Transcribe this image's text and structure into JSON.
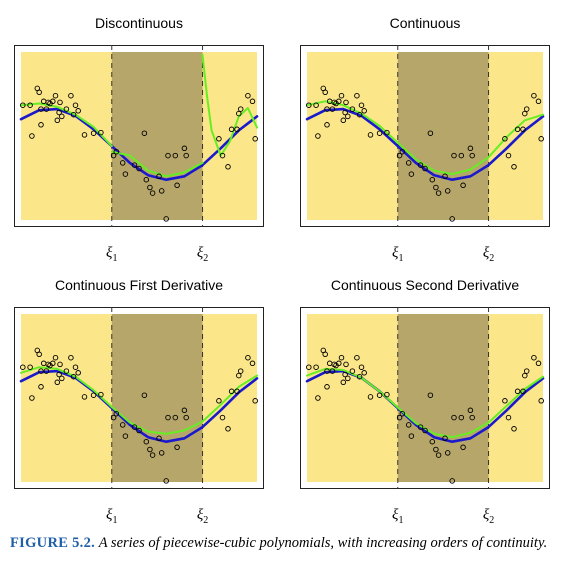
{
  "caption": {
    "label": "FIGURE 5.2.",
    "text": "A series of piecewise-cubic polynomials, with increasing orders of continuity."
  },
  "colors": {
    "outer_region": "#fce68a",
    "middle_region": "#b7a66a",
    "true_function": "#1a1acc",
    "fit": "#66ee22",
    "points": "#000000",
    "knot_lines": "#333333"
  },
  "knot_labels": [
    "ξ1",
    "ξ2"
  ],
  "chart_data": [
    {
      "type": "scatter",
      "title": "Discontinuous",
      "knots": [
        1,
        2
      ],
      "xlim": [
        0,
        2.6
      ],
      "ylim": [
        -1.5,
        1.5
      ],
      "points": [
        [
          0.02,
          0.55
        ],
        [
          0.1,
          0.55
        ],
        [
          0.12,
          0.0
        ],
        [
          0.18,
          0.85
        ],
        [
          0.2,
          0.78
        ],
        [
          0.22,
          0.48
        ],
        [
          0.22,
          0.2
        ],
        [
          0.25,
          0.62
        ],
        [
          0.28,
          0.48
        ],
        [
          0.3,
          0.6
        ],
        [
          0.32,
          0.58
        ],
        [
          0.35,
          0.62
        ],
        [
          0.38,
          0.72
        ],
        [
          0.4,
          0.28
        ],
        [
          0.42,
          0.42
        ],
        [
          0.43,
          0.6
        ],
        [
          0.45,
          0.35
        ],
        [
          0.5,
          0.48
        ],
        [
          0.55,
          0.72
        ],
        [
          0.58,
          0.38
        ],
        [
          0.6,
          0.55
        ],
        [
          0.63,
          0.45
        ],
        [
          0.7,
          0.02
        ],
        [
          0.8,
          0.05
        ],
        [
          0.88,
          0.06
        ],
        [
          1.02,
          -0.35
        ],
        [
          1.05,
          -0.28
        ],
        [
          1.12,
          -0.48
        ],
        [
          1.15,
          -0.68
        ],
        [
          1.25,
          -0.52
        ],
        [
          1.3,
          -0.58
        ],
        [
          1.36,
          0.05
        ],
        [
          1.38,
          -0.78
        ],
        [
          1.42,
          -0.92
        ],
        [
          1.45,
          -1.02
        ],
        [
          1.52,
          -0.72
        ],
        [
          1.55,
          -0.98
        ],
        [
          1.6,
          -1.48
        ],
        [
          1.62,
          -0.35
        ],
        [
          1.7,
          -0.35
        ],
        [
          1.72,
          -0.88
        ],
        [
          1.8,
          -0.22
        ],
        [
          1.82,
          -0.35
        ],
        [
          2.18,
          -0.05
        ],
        [
          2.22,
          -0.35
        ],
        [
          2.28,
          -0.55
        ],
        [
          2.32,
          0.12
        ],
        [
          2.38,
          0.12
        ],
        [
          2.4,
          0.4
        ],
        [
          2.42,
          0.48
        ],
        [
          2.5,
          0.72
        ],
        [
          2.55,
          0.62
        ],
        [
          2.58,
          -0.05
        ]
      ],
      "true_function": {
        "x": [
          0,
          0.2,
          0.4,
          0.6,
          0.8,
          1,
          1.2,
          1.4,
          1.6,
          1.8,
          2,
          2.2,
          2.4,
          2.6
        ],
        "y": [
          0.3,
          0.46,
          0.48,
          0.36,
          0.12,
          -0.18,
          -0.48,
          -0.7,
          -0.78,
          -0.72,
          -0.52,
          -0.22,
          0.1,
          0.35
        ]
      },
      "fit_segments": [
        {
          "x": [
            0,
            0.2,
            0.4,
            0.6,
            0.8,
            1
          ],
          "y": [
            0.55,
            0.58,
            0.52,
            0.38,
            0.16,
            -0.18
          ]
        },
        {
          "x": [
            1,
            1.2,
            1.4,
            1.6,
            1.8,
            2
          ],
          "y": [
            -0.28,
            -0.35,
            -0.62,
            -0.72,
            -0.65,
            -0.48
          ]
        },
        {
          "x": [
            2,
            2.05,
            2.1,
            2.2,
            2.3,
            2.4,
            2.5,
            2.6
          ],
          "y": [
            1.45,
            0.7,
            0.1,
            -0.35,
            -0.1,
            0.35,
            0.5,
            0.15
          ]
        }
      ]
    },
    {
      "type": "scatter",
      "title": "Continuous",
      "knots": [
        1,
        2
      ],
      "xlim": [
        0,
        2.6
      ],
      "ylim": [
        -1.5,
        1.5
      ],
      "points": [
        [
          0.02,
          0.55
        ],
        [
          0.1,
          0.55
        ],
        [
          0.12,
          0.0
        ],
        [
          0.18,
          0.85
        ],
        [
          0.2,
          0.78
        ],
        [
          0.22,
          0.48
        ],
        [
          0.22,
          0.2
        ],
        [
          0.25,
          0.62
        ],
        [
          0.28,
          0.48
        ],
        [
          0.3,
          0.6
        ],
        [
          0.32,
          0.58
        ],
        [
          0.35,
          0.62
        ],
        [
          0.38,
          0.72
        ],
        [
          0.4,
          0.28
        ],
        [
          0.42,
          0.42
        ],
        [
          0.43,
          0.6
        ],
        [
          0.45,
          0.35
        ],
        [
          0.5,
          0.48
        ],
        [
          0.55,
          0.72
        ],
        [
          0.58,
          0.38
        ],
        [
          0.6,
          0.55
        ],
        [
          0.63,
          0.45
        ],
        [
          0.7,
          0.02
        ],
        [
          0.8,
          0.05
        ],
        [
          0.88,
          0.06
        ],
        [
          1.02,
          -0.35
        ],
        [
          1.05,
          -0.28
        ],
        [
          1.12,
          -0.48
        ],
        [
          1.15,
          -0.68
        ],
        [
          1.25,
          -0.52
        ],
        [
          1.3,
          -0.58
        ],
        [
          1.36,
          0.05
        ],
        [
          1.38,
          -0.78
        ],
        [
          1.42,
          -0.92
        ],
        [
          1.45,
          -1.02
        ],
        [
          1.52,
          -0.72
        ],
        [
          1.55,
          -0.98
        ],
        [
          1.6,
          -1.48
        ],
        [
          1.62,
          -0.35
        ],
        [
          1.7,
          -0.35
        ],
        [
          1.72,
          -0.88
        ],
        [
          1.8,
          -0.22
        ],
        [
          1.82,
          -0.35
        ],
        [
          2.18,
          -0.05
        ],
        [
          2.22,
          -0.35
        ],
        [
          2.28,
          -0.55
        ],
        [
          2.32,
          0.12
        ],
        [
          2.38,
          0.12
        ],
        [
          2.4,
          0.4
        ],
        [
          2.42,
          0.48
        ],
        [
          2.5,
          0.72
        ],
        [
          2.55,
          0.62
        ],
        [
          2.58,
          -0.05
        ]
      ],
      "true_function": {
        "x": [
          0,
          0.2,
          0.4,
          0.6,
          0.8,
          1,
          1.2,
          1.4,
          1.6,
          1.8,
          2,
          2.2,
          2.4,
          2.6
        ],
        "y": [
          0.3,
          0.46,
          0.48,
          0.36,
          0.12,
          -0.18,
          -0.48,
          -0.7,
          -0.78,
          -0.72,
          -0.52,
          -0.22,
          0.1,
          0.35
        ]
      },
      "fit_segments": [
        {
          "x": [
            0,
            0.2,
            0.4,
            0.6,
            0.8,
            1
          ],
          "y": [
            0.55,
            0.62,
            0.55,
            0.4,
            0.18,
            -0.12
          ]
        },
        {
          "x": [
            1,
            1.2,
            1.4,
            1.6,
            1.8,
            2
          ],
          "y": [
            -0.12,
            -0.42,
            -0.62,
            -0.68,
            -0.6,
            -0.38
          ]
        },
        {
          "x": [
            2,
            2.2,
            2.4,
            2.6
          ],
          "y": [
            -0.38,
            -0.02,
            0.28,
            0.38
          ]
        }
      ]
    },
    {
      "type": "scatter",
      "title": "Continuous First Derivative",
      "knots": [
        1,
        2
      ],
      "xlim": [
        0,
        2.6
      ],
      "ylim": [
        -1.5,
        1.5
      ],
      "points": [
        [
          0.02,
          0.55
        ],
        [
          0.1,
          0.55
        ],
        [
          0.12,
          0.0
        ],
        [
          0.18,
          0.85
        ],
        [
          0.2,
          0.78
        ],
        [
          0.22,
          0.48
        ],
        [
          0.22,
          0.2
        ],
        [
          0.25,
          0.62
        ],
        [
          0.28,
          0.48
        ],
        [
          0.3,
          0.6
        ],
        [
          0.32,
          0.58
        ],
        [
          0.35,
          0.62
        ],
        [
          0.38,
          0.72
        ],
        [
          0.4,
          0.28
        ],
        [
          0.42,
          0.42
        ],
        [
          0.43,
          0.6
        ],
        [
          0.45,
          0.35
        ],
        [
          0.5,
          0.48
        ],
        [
          0.55,
          0.72
        ],
        [
          0.58,
          0.38
        ],
        [
          0.6,
          0.55
        ],
        [
          0.63,
          0.45
        ],
        [
          0.7,
          0.02
        ],
        [
          0.8,
          0.05
        ],
        [
          0.88,
          0.06
        ],
        [
          1.02,
          -0.35
        ],
        [
          1.05,
          -0.28
        ],
        [
          1.12,
          -0.48
        ],
        [
          1.15,
          -0.68
        ],
        [
          1.25,
          -0.52
        ],
        [
          1.3,
          -0.58
        ],
        [
          1.36,
          0.05
        ],
        [
          1.38,
          -0.78
        ],
        [
          1.42,
          -0.92
        ],
        [
          1.45,
          -1.02
        ],
        [
          1.52,
          -0.72
        ],
        [
          1.55,
          -0.98
        ],
        [
          1.6,
          -1.48
        ],
        [
          1.62,
          -0.35
        ],
        [
          1.7,
          -0.35
        ],
        [
          1.72,
          -0.88
        ],
        [
          1.8,
          -0.22
        ],
        [
          1.82,
          -0.35
        ],
        [
          2.18,
          -0.05
        ],
        [
          2.22,
          -0.35
        ],
        [
          2.28,
          -0.55
        ],
        [
          2.32,
          0.12
        ],
        [
          2.38,
          0.12
        ],
        [
          2.4,
          0.4
        ],
        [
          2.42,
          0.48
        ],
        [
          2.5,
          0.72
        ],
        [
          2.55,
          0.62
        ],
        [
          2.58,
          -0.05
        ]
      ],
      "true_function": {
        "x": [
          0,
          0.2,
          0.4,
          0.6,
          0.8,
          1,
          1.2,
          1.4,
          1.6,
          1.8,
          2,
          2.2,
          2.4,
          2.6
        ],
        "y": [
          0.3,
          0.46,
          0.48,
          0.36,
          0.12,
          -0.18,
          -0.48,
          -0.7,
          -0.78,
          -0.72,
          -0.52,
          -0.22,
          0.1,
          0.35
        ]
      },
      "fit_segments": [
        {
          "x": [
            0,
            0.2,
            0.4,
            0.6,
            0.8,
            1
          ],
          "y": [
            0.45,
            0.55,
            0.52,
            0.38,
            0.14,
            -0.16
          ]
        },
        {
          "x": [
            1,
            1.2,
            1.4,
            1.6,
            1.8,
            2
          ],
          "y": [
            -0.16,
            -0.44,
            -0.6,
            -0.64,
            -0.58,
            -0.42
          ]
        },
        {
          "x": [
            2,
            2.2,
            2.4,
            2.6
          ],
          "y": [
            -0.42,
            -0.12,
            0.2,
            0.4
          ]
        }
      ]
    },
    {
      "type": "scatter",
      "title": "Continuous Second Derivative",
      "knots": [
        1,
        2
      ],
      "xlim": [
        0,
        2.6
      ],
      "ylim": [
        -1.5,
        1.5
      ],
      "points": [
        [
          0.02,
          0.55
        ],
        [
          0.1,
          0.55
        ],
        [
          0.12,
          0.0
        ],
        [
          0.18,
          0.85
        ],
        [
          0.2,
          0.78
        ],
        [
          0.22,
          0.48
        ],
        [
          0.22,
          0.2
        ],
        [
          0.25,
          0.62
        ],
        [
          0.28,
          0.48
        ],
        [
          0.3,
          0.6
        ],
        [
          0.32,
          0.58
        ],
        [
          0.35,
          0.62
        ],
        [
          0.38,
          0.72
        ],
        [
          0.4,
          0.28
        ],
        [
          0.42,
          0.42
        ],
        [
          0.43,
          0.6
        ],
        [
          0.45,
          0.35
        ],
        [
          0.5,
          0.48
        ],
        [
          0.55,
          0.72
        ],
        [
          0.58,
          0.38
        ],
        [
          0.6,
          0.55
        ],
        [
          0.63,
          0.45
        ],
        [
          0.7,
          0.02
        ],
        [
          0.8,
          0.05
        ],
        [
          0.88,
          0.06
        ],
        [
          1.02,
          -0.35
        ],
        [
          1.05,
          -0.28
        ],
        [
          1.12,
          -0.48
        ],
        [
          1.15,
          -0.68
        ],
        [
          1.25,
          -0.52
        ],
        [
          1.3,
          -0.58
        ],
        [
          1.36,
          0.05
        ],
        [
          1.38,
          -0.78
        ],
        [
          1.42,
          -0.92
        ],
        [
          1.45,
          -1.02
        ],
        [
          1.52,
          -0.72
        ],
        [
          1.55,
          -0.98
        ],
        [
          1.6,
          -1.48
        ],
        [
          1.62,
          -0.35
        ],
        [
          1.7,
          -0.35
        ],
        [
          1.72,
          -0.88
        ],
        [
          1.8,
          -0.22
        ],
        [
          1.82,
          -0.35
        ],
        [
          2.18,
          -0.05
        ],
        [
          2.22,
          -0.35
        ],
        [
          2.28,
          -0.55
        ],
        [
          2.32,
          0.12
        ],
        [
          2.38,
          0.12
        ],
        [
          2.4,
          0.4
        ],
        [
          2.42,
          0.48
        ],
        [
          2.5,
          0.72
        ],
        [
          2.55,
          0.62
        ],
        [
          2.58,
          -0.05
        ]
      ],
      "true_function": {
        "x": [
          0,
          0.2,
          0.4,
          0.6,
          0.8,
          1,
          1.2,
          1.4,
          1.6,
          1.8,
          2,
          2.2,
          2.4,
          2.6
        ],
        "y": [
          0.3,
          0.46,
          0.48,
          0.36,
          0.12,
          -0.18,
          -0.48,
          -0.7,
          -0.78,
          -0.72,
          -0.52,
          -0.22,
          0.1,
          0.35
        ]
      },
      "fit_segments": [
        {
          "x": [
            0,
            0.2,
            0.4,
            0.6,
            0.8,
            1
          ],
          "y": [
            0.4,
            0.52,
            0.5,
            0.36,
            0.12,
            -0.17
          ]
        },
        {
          "x": [
            1,
            1.2,
            1.4,
            1.6,
            1.8,
            2
          ],
          "y": [
            -0.17,
            -0.45,
            -0.64,
            -0.7,
            -0.62,
            -0.44
          ]
        },
        {
          "x": [
            2,
            2.2,
            2.4,
            2.6
          ],
          "y": [
            -0.44,
            -0.14,
            0.16,
            0.38
          ]
        }
      ]
    }
  ]
}
